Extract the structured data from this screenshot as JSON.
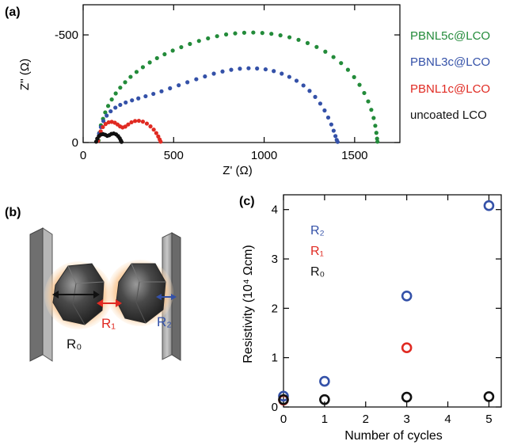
{
  "panels": {
    "a": "(a)",
    "b": "(b)",
    "c": "(c)"
  },
  "chart_data": [
    {
      "panel": "(a)",
      "type": "scatter",
      "xlabel": "Z' (Ω)",
      "ylabel": "Z'' (Ω)",
      "xlim": [
        0,
        1750
      ],
      "ylim": [
        0,
        -640
      ],
      "y_inverted": true,
      "x_ticks": [
        0,
        500,
        1000,
        1500
      ],
      "x_tick_labels": [
        "0",
        "500",
        "1000",
        "1500"
      ],
      "y_ticks": [
        0,
        -500
      ],
      "y_tick_labels": [
        "0",
        "-500"
      ],
      "legend_position": "right",
      "series": [
        {
          "name": "PBNL5c@LCO",
          "color": "#238b3a",
          "points": [
            [
              85,
              -10
            ],
            [
              90,
              -45
            ],
            [
              98,
              -80
            ],
            [
              110,
              -110
            ],
            [
              122,
              -140
            ],
            [
              138,
              -170
            ],
            [
              158,
              -200
            ],
            [
              180,
              -228
            ],
            [
              205,
              -255
            ],
            [
              232,
              -280
            ],
            [
              262,
              -305
            ],
            [
              295,
              -328
            ],
            [
              330,
              -350
            ],
            [
              368,
              -372
            ],
            [
              408,
              -392
            ],
            [
              450,
              -410
            ],
            [
              495,
              -427
            ],
            [
              542,
              -443
            ],
            [
              590,
              -458
            ],
            [
              640,
              -472
            ],
            [
              690,
              -484
            ],
            [
              740,
              -494
            ],
            [
              790,
              -502
            ],
            [
              840,
              -507
            ],
            [
              890,
              -510
            ],
            [
              940,
              -511
            ],
            [
              990,
              -509
            ],
            [
              1040,
              -505
            ],
            [
              1090,
              -498
            ],
            [
              1140,
              -489
            ],
            [
              1190,
              -477
            ],
            [
              1240,
              -462
            ],
            [
              1290,
              -444
            ],
            [
              1338,
              -422
            ],
            [
              1383,
              -397
            ],
            [
              1425,
              -369
            ],
            [
              1463,
              -338
            ],
            [
              1497,
              -304
            ],
            [
              1527,
              -268
            ],
            [
              1553,
              -230
            ],
            [
              1575,
              -191
            ],
            [
              1592,
              -152
            ],
            [
              1605,
              -114
            ],
            [
              1614,
              -78
            ],
            [
              1620,
              -45
            ],
            [
              1624,
              -18
            ],
            [
              1626,
              -4
            ]
          ]
        },
        {
          "name": "PBNL3c@LCO",
          "color": "#3451a8",
          "points": [
            [
              80,
              -10
            ],
            [
              88,
              -42
            ],
            [
              98,
              -72
            ],
            [
              112,
              -100
            ],
            [
              130,
              -125
            ],
            [
              152,
              -145
            ],
            [
              178,
              -162
            ],
            [
              205,
              -175
            ],
            [
              235,
              -186
            ],
            [
              270,
              -196
            ],
            [
              305,
              -205
            ],
            [
              345,
              -215
            ],
            [
              388,
              -226
            ],
            [
              433,
              -238
            ],
            [
              480,
              -252
            ],
            [
              528,
              -266
            ],
            [
              576,
              -280
            ],
            [
              625,
              -294
            ],
            [
              673,
              -307
            ],
            [
              722,
              -320
            ],
            [
              770,
              -330
            ],
            [
              818,
              -338
            ],
            [
              866,
              -343
            ],
            [
              914,
              -345
            ],
            [
              961,
              -344
            ],
            [
              1008,
              -340
            ],
            [
              1053,
              -332
            ],
            [
              1097,
              -320
            ],
            [
              1139,
              -305
            ],
            [
              1179,
              -287
            ],
            [
              1217,
              -265
            ],
            [
              1251,
              -240
            ],
            [
              1282,
              -212
            ],
            [
              1310,
              -181
            ],
            [
              1334,
              -149
            ],
            [
              1354,
              -116
            ],
            [
              1371,
              -84
            ],
            [
              1384,
              -55
            ],
            [
              1394,
              -30
            ],
            [
              1401,
              -12
            ],
            [
              1406,
              -3
            ]
          ]
        },
        {
          "name": "PBNL1c@LCO",
          "color": "#e02a22",
          "points": [
            [
              82,
              -8
            ],
            [
              88,
              -30
            ],
            [
              97,
              -52
            ],
            [
              109,
              -72
            ],
            [
              124,
              -86
            ],
            [
              141,
              -94
            ],
            [
              158,
              -96
            ],
            [
              175,
              -92
            ],
            [
              190,
              -84
            ],
            [
              204,
              -75
            ],
            [
              218,
              -70
            ],
            [
              233,
              -74
            ],
            [
              249,
              -84
            ],
            [
              267,
              -94
            ],
            [
              287,
              -100
            ],
            [
              308,
              -101
            ],
            [
              330,
              -97
            ],
            [
              352,
              -88
            ],
            [
              372,
              -75
            ],
            [
              390,
              -60
            ],
            [
              404,
              -44
            ],
            [
              415,
              -28
            ],
            [
              423,
              -14
            ],
            [
              428,
              -4
            ]
          ]
        },
        {
          "name": "uncoated LCO",
          "color": "#111111",
          "points": [
            [
              72,
              -4
            ],
            [
              78,
              -18
            ],
            [
              87,
              -30
            ],
            [
              98,
              -37
            ],
            [
              110,
              -39
            ],
            [
              122,
              -36
            ],
            [
              133,
              -31
            ],
            [
              144,
              -34
            ],
            [
              156,
              -40
            ],
            [
              169,
              -42
            ],
            [
              182,
              -38
            ],
            [
              193,
              -30
            ],
            [
              202,
              -20
            ],
            [
              208,
              -10
            ],
            [
              212,
              -3
            ]
          ]
        }
      ]
    },
    {
      "panel": "(c)",
      "type": "scatter",
      "xlabel": "Number of cycles",
      "ylabel": "Resistivity (10⁴ Ωcm)",
      "xlim": [
        0,
        5.3
      ],
      "ylim": [
        0,
        4.3
      ],
      "x_ticks": [
        0,
        1,
        2,
        3,
        4,
        5
      ],
      "y_ticks": [
        0,
        1,
        2,
        3,
        4
      ],
      "marker": "open-circle",
      "legend_position": "top-left",
      "series": [
        {
          "name": "R₂",
          "color": "#3451a8",
          "x": [
            0,
            1,
            3,
            5
          ],
          "y": [
            0.22,
            0.52,
            2.25,
            4.08
          ]
        },
        {
          "name": "R₁",
          "color": "#e02a22",
          "x": [
            0,
            3
          ],
          "y": [
            0.14,
            1.2
          ]
        },
        {
          "name": "R₀",
          "color": "#111111",
          "x": [
            0,
            1,
            3,
            5
          ],
          "y": [
            0.15,
            0.15,
            0.2,
            0.21
          ]
        }
      ]
    }
  ],
  "schematic": {
    "labels": [
      "R₀",
      "R₁",
      "R₂"
    ],
    "colors": {
      "R0": "#111111",
      "R1": "#e02a22",
      "R2": "#3451a8"
    }
  }
}
